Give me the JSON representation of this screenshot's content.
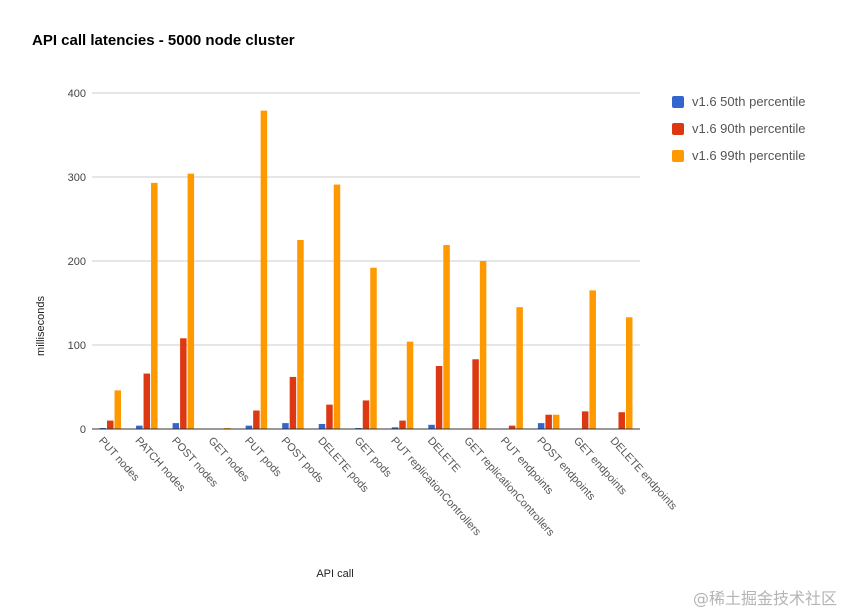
{
  "chart_data": {
    "type": "bar",
    "title": "API call latencies - 5000 node cluster",
    "xlabel": "API call",
    "ylabel": "milliseconds",
    "ylim": [
      0,
      400
    ],
    "yticks": [
      "0",
      "100",
      "200",
      "300",
      "400"
    ],
    "grid": true,
    "legend_position": "right",
    "categories": [
      "PUT nodes",
      "PATCH nodes",
      "POST nodes",
      "GET nodes",
      "PUT pods",
      "POST pods",
      "DELETE pods",
      "GET pods",
      "PUT replicationControllers",
      "DELETE",
      "GET replicationControllers",
      "PUT endpoints",
      "POST endpoints",
      "GET endpoints",
      "DELETE endpoints"
    ],
    "series": [
      {
        "name": "v1.6 50th percentile",
        "color": "#3366cc",
        "values": [
          1,
          4,
          7,
          0,
          4,
          7,
          6,
          1,
          2,
          5,
          0,
          0,
          7,
          0,
          0
        ]
      },
      {
        "name": "v1.6 90th percentile",
        "color": "#dc3912",
        "values": [
          10,
          66,
          108,
          0,
          22,
          62,
          29,
          34,
          10,
          75,
          83,
          4,
          17,
          21,
          20
        ]
      },
      {
        "name": "v1.6 99th percentile",
        "color": "#ff9900",
        "values": [
          46,
          293,
          304,
          1,
          379,
          225,
          291,
          192,
          104,
          219,
          200,
          145,
          17,
          165,
          133
        ]
      }
    ]
  },
  "watermark": "@稀土掘金技术社区"
}
